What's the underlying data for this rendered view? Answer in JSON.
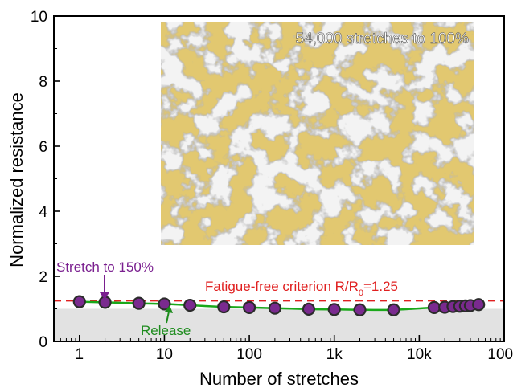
{
  "chart_data": {
    "type": "scatter",
    "xlabel": "Number of stretches",
    "ylabel": "Normalized resistance",
    "x_scale": "log",
    "xlim": [
      0.5,
      100000
    ],
    "ylim": [
      0,
      10
    ],
    "x_ticks": [
      {
        "value": 1,
        "label": "1"
      },
      {
        "value": 10,
        "label": "10"
      },
      {
        "value": 100,
        "label": "100"
      },
      {
        "value": 1000,
        "label": "1k"
      },
      {
        "value": 10000,
        "label": "10k"
      },
      {
        "value": 100000,
        "label": "100k"
      }
    ],
    "y_ticks": [
      {
        "value": 0,
        "label": "0"
      },
      {
        "value": 2,
        "label": "2"
      },
      {
        "value": 4,
        "label": "4"
      },
      {
        "value": 6,
        "label": "6"
      },
      {
        "value": 8,
        "label": "8"
      },
      {
        "value": 10,
        "label": "10"
      }
    ],
    "grid": false,
    "series": [
      {
        "marker_color": "#7a2a8f",
        "line_color": "#1aa81a",
        "x": [
          1,
          2,
          5,
          10,
          20,
          50,
          100,
          200,
          500,
          1000,
          2000,
          5000,
          15000,
          20000,
          25000,
          30000,
          35000,
          40000,
          50000
        ],
        "y": [
          1.22,
          1.2,
          1.17,
          1.15,
          1.11,
          1.06,
          1.04,
          1.02,
          0.99,
          0.98,
          0.97,
          0.97,
          1.04,
          1.05,
          1.07,
          1.08,
          1.09,
          1.1,
          1.13
        ]
      }
    ],
    "threshold": {
      "y": 1.25,
      "color": "#e02020",
      "label_main": "Fatigue-free criterion R/R",
      "label_sub": "0",
      "label_tail": "=1.25"
    },
    "shaded_band": {
      "y_from": 0,
      "y_to": 1,
      "color": "#e2e2e2"
    },
    "annotations": {
      "stretch": {
        "text": "Stretch to 150%",
        "color": "#7a1f8f",
        "at_x": 2,
        "at_y": 1.22
      },
      "release": {
        "text": "Release",
        "color": "#1e8c1e",
        "at_x": 15,
        "at_y": 1.08
      }
    },
    "inset": {
      "caption": "54,000 stretches to 100%"
    }
  }
}
